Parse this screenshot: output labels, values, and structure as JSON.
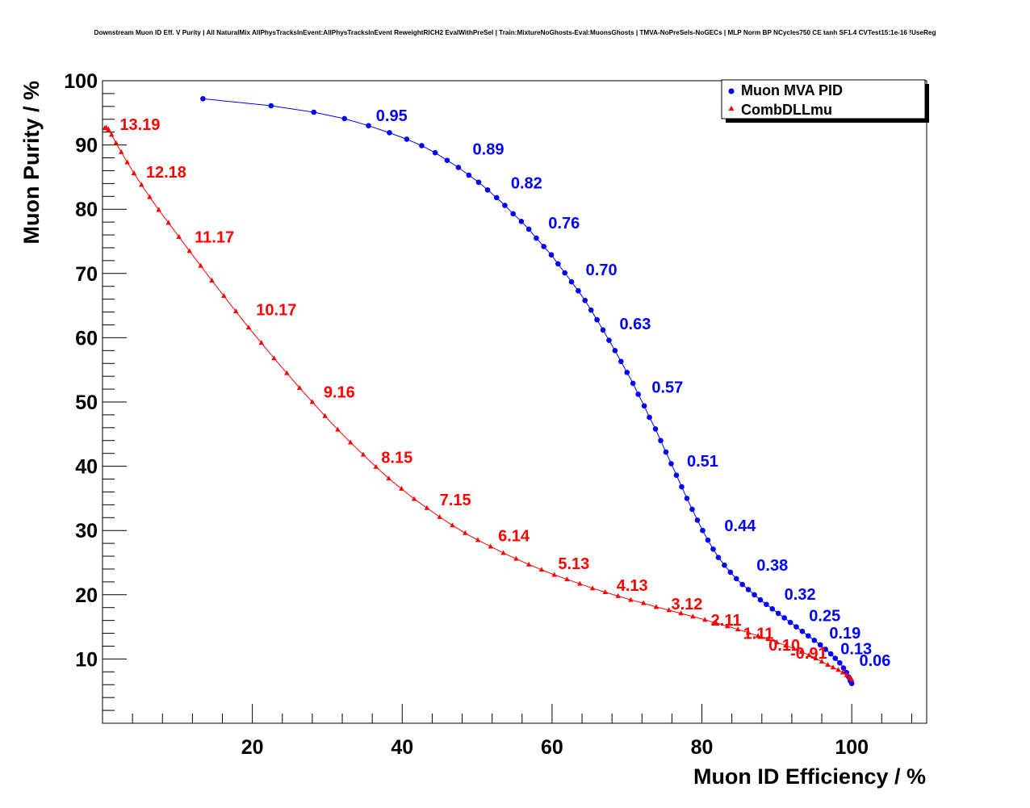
{
  "chart_data": {
    "type": "scatter",
    "title": "Downstream Muon ID Eff. V Purity | All NaturalMix AllPhysTracksInEvent:AllPhysTracksInEvent ReweightRICH2 EvalWithPreSel | Train:MixtureNoGhosts-Eval:MuonsGhosts | TMVA-NoPreSels-NoGECs | MLP Norm BP NCycles750 CE tanh SF1.4 CVTest15:1e-16 !UseReg",
    "xlabel": "Muon ID Efficiency / %",
    "ylabel": "Muon Purity / %",
    "xlim": [
      0,
      110
    ],
    "ylim": [
      0,
      100
    ],
    "xticks": [
      20,
      40,
      60,
      80,
      100
    ],
    "yticks": [
      10,
      20,
      30,
      40,
      50,
      60,
      70,
      80,
      90,
      100
    ],
    "grid": false,
    "legend_position": "top-right",
    "series": [
      {
        "name": "Muon MVA PID",
        "color": "#0000ff",
        "marker": "circle",
        "points": [
          [
            13.4,
            97.2
          ],
          [
            22.5,
            96.1
          ],
          [
            28.2,
            95.1
          ],
          [
            32.3,
            94.1
          ],
          [
            35.5,
            93.0
          ],
          [
            38.3,
            91.9
          ],
          [
            40.6,
            90.9
          ],
          [
            42.6,
            89.9
          ],
          [
            44.4,
            88.8
          ],
          [
            46.0,
            87.6
          ],
          [
            47.5,
            86.5
          ],
          [
            48.9,
            85.3
          ],
          [
            50.2,
            84.2
          ],
          [
            51.4,
            83.0
          ],
          [
            52.6,
            81.8
          ],
          [
            53.7,
            80.6
          ],
          [
            54.8,
            79.3
          ],
          [
            55.9,
            78.1
          ],
          [
            56.9,
            76.9
          ],
          [
            57.9,
            75.5
          ],
          [
            58.9,
            74.2
          ],
          [
            59.9,
            72.9
          ],
          [
            60.8,
            71.5
          ],
          [
            61.7,
            70.1
          ],
          [
            62.6,
            68.7
          ],
          [
            63.5,
            67.3
          ],
          [
            64.4,
            65.8
          ],
          [
            65.2,
            64.3
          ],
          [
            66.0,
            62.8
          ],
          [
            66.8,
            61.2
          ],
          [
            67.6,
            59.6
          ],
          [
            68.4,
            58.0
          ],
          [
            69.2,
            56.3
          ],
          [
            70.0,
            54.6
          ],
          [
            70.8,
            52.9
          ],
          [
            71.5,
            51.2
          ],
          [
            72.3,
            49.4
          ],
          [
            73.0,
            47.6
          ],
          [
            73.8,
            45.8
          ],
          [
            74.5,
            44.0
          ],
          [
            75.2,
            42.2
          ],
          [
            75.9,
            40.4
          ],
          [
            76.6,
            38.6
          ],
          [
            77.3,
            36.8
          ],
          [
            78.0,
            35.0
          ],
          [
            78.7,
            33.3
          ],
          [
            79.4,
            31.6
          ],
          [
            80.1,
            30.0
          ],
          [
            80.8,
            28.5
          ],
          [
            81.5,
            27.1
          ],
          [
            82.2,
            25.8
          ],
          [
            83.0,
            24.6
          ],
          [
            83.8,
            23.5
          ],
          [
            84.6,
            22.5
          ],
          [
            85.4,
            21.6
          ],
          [
            86.2,
            20.8
          ],
          [
            87.0,
            20.0
          ],
          [
            87.8,
            19.2
          ],
          [
            88.6,
            18.5
          ],
          [
            89.4,
            17.8
          ],
          [
            90.2,
            17.1
          ],
          [
            91.0,
            16.4
          ],
          [
            91.8,
            15.7
          ],
          [
            92.6,
            15.0
          ],
          [
            93.4,
            14.3
          ],
          [
            94.2,
            13.6
          ],
          [
            95.0,
            12.9
          ],
          [
            95.8,
            12.2
          ],
          [
            96.5,
            11.5
          ],
          [
            97.2,
            10.8
          ],
          [
            97.8,
            10.1
          ],
          [
            98.4,
            9.4
          ],
          [
            98.9,
            8.6
          ],
          [
            99.3,
            7.9
          ],
          [
            99.6,
            7.2
          ],
          [
            99.8,
            6.6
          ],
          [
            100.0,
            6.2
          ]
        ]
      },
      {
        "name": "CombDLLmu",
        "color": "#ff0000",
        "marker": "triangle",
        "points": [
          [
            0.3,
            92.6
          ],
          [
            0.5,
            92.7
          ],
          [
            0.8,
            92.4
          ],
          [
            1.2,
            91.6
          ],
          [
            1.8,
            90.3
          ],
          [
            2.5,
            88.9
          ],
          [
            3.3,
            87.3
          ],
          [
            4.2,
            85.6
          ],
          [
            5.2,
            83.8
          ],
          [
            6.3,
            81.9
          ],
          [
            7.5,
            79.9
          ],
          [
            8.8,
            77.9
          ],
          [
            10.2,
            75.7
          ],
          [
            11.6,
            73.5
          ],
          [
            13.1,
            71.2
          ],
          [
            14.6,
            68.9
          ],
          [
            16.2,
            66.5
          ],
          [
            17.8,
            64.1
          ],
          [
            19.5,
            61.6
          ],
          [
            21.2,
            59.2
          ],
          [
            22.9,
            56.8
          ],
          [
            24.6,
            54.5
          ],
          [
            26.3,
            52.2
          ],
          [
            28.0,
            50.0
          ],
          [
            29.7,
            47.8
          ],
          [
            31.4,
            45.7
          ],
          [
            33.1,
            43.7
          ],
          [
            34.8,
            41.8
          ],
          [
            36.5,
            39.9
          ],
          [
            38.2,
            38.1
          ],
          [
            39.9,
            36.5
          ],
          [
            41.6,
            34.9
          ],
          [
            43.3,
            33.5
          ],
          [
            45.0,
            32.1
          ],
          [
            46.7,
            30.8
          ],
          [
            48.4,
            29.6
          ],
          [
            50.1,
            28.5
          ],
          [
            51.8,
            27.5
          ],
          [
            53.5,
            26.5
          ],
          [
            55.2,
            25.6
          ],
          [
            56.9,
            24.7
          ],
          [
            58.6,
            23.9
          ],
          [
            60.3,
            23.1
          ],
          [
            62.0,
            22.4
          ],
          [
            63.7,
            21.7
          ],
          [
            65.4,
            21.0
          ],
          [
            67.1,
            20.4
          ],
          [
            68.8,
            19.8
          ],
          [
            70.5,
            19.2
          ],
          [
            72.2,
            18.7
          ],
          [
            73.9,
            18.1
          ],
          [
            75.6,
            17.6
          ],
          [
            77.2,
            17.1
          ],
          [
            78.8,
            16.6
          ],
          [
            80.4,
            16.1
          ],
          [
            81.9,
            15.6
          ],
          [
            83.4,
            15.1
          ],
          [
            84.8,
            14.6
          ],
          [
            86.2,
            14.1
          ],
          [
            87.5,
            13.6
          ],
          [
            88.8,
            13.1
          ],
          [
            90.0,
            12.6
          ],
          [
            91.2,
            12.1
          ],
          [
            92.3,
            11.6
          ],
          [
            93.3,
            11.1
          ],
          [
            94.3,
            10.6
          ],
          [
            95.2,
            10.1
          ],
          [
            96.0,
            9.6
          ],
          [
            96.8,
            9.1
          ],
          [
            97.5,
            8.7
          ],
          [
            98.2,
            8.3
          ],
          [
            98.8,
            7.9
          ],
          [
            99.3,
            7.5
          ],
          [
            99.7,
            7.1
          ],
          [
            100.0,
            6.8
          ]
        ]
      }
    ],
    "annotations": [
      {
        "series": "Muon MVA PID",
        "text": "0.95",
        "x": 36.5,
        "y": 94.6
      },
      {
        "series": "Muon MVA PID",
        "text": "0.89",
        "x": 49.4,
        "y": 89.4
      },
      {
        "series": "Muon MVA PID",
        "text": "0.82",
        "x": 54.5,
        "y": 84.1
      },
      {
        "series": "Muon MVA PID",
        "text": "0.76",
        "x": 59.5,
        "y": 77.9
      },
      {
        "series": "Muon MVA PID",
        "text": "0.70",
        "x": 64.5,
        "y": 70.6
      },
      {
        "series": "Muon MVA PID",
        "text": "0.63",
        "x": 69.0,
        "y": 62.2
      },
      {
        "series": "Muon MVA PID",
        "text": "0.57",
        "x": 73.3,
        "y": 52.3
      },
      {
        "series": "Muon MVA PID",
        "text": "0.51",
        "x": 78.0,
        "y": 40.8
      },
      {
        "series": "Muon MVA PID",
        "text": "0.44",
        "x": 83.0,
        "y": 30.8
      },
      {
        "series": "Muon MVA PID",
        "text": "0.38",
        "x": 87.3,
        "y": 24.6
      },
      {
        "series": "Muon MVA PID",
        "text": "0.32",
        "x": 91.0,
        "y": 20.1
      },
      {
        "series": "Muon MVA PID",
        "text": "0.25",
        "x": 94.3,
        "y": 16.8
      },
      {
        "series": "Muon MVA PID",
        "text": "0.19",
        "x": 97.0,
        "y": 14.1
      },
      {
        "series": "Muon MVA PID",
        "text": "0.13",
        "x": 98.5,
        "y": 11.6
      },
      {
        "series": "Muon MVA PID",
        "text": "0.06",
        "x": 101.0,
        "y": 9.8
      },
      {
        "series": "CombDLLmu",
        "text": "13.19",
        "x": 2.3,
        "y": 93.2
      },
      {
        "series": "CombDLLmu",
        "text": "12.18",
        "x": 5.8,
        "y": 85.8
      },
      {
        "series": "CombDLLmu",
        "text": "11.17",
        "x": 12.3,
        "y": 75.7
      },
      {
        "series": "CombDLLmu",
        "text": "10.17",
        "x": 20.5,
        "y": 64.4
      },
      {
        "series": "CombDLLmu",
        "text": "9.16",
        "x": 29.5,
        "y": 51.6
      },
      {
        "series": "CombDLLmu",
        "text": "8.15",
        "x": 37.2,
        "y": 41.4
      },
      {
        "series": "CombDLLmu",
        "text": "7.15",
        "x": 45.0,
        "y": 34.8
      },
      {
        "series": "CombDLLmu",
        "text": "6.14",
        "x": 52.8,
        "y": 29.2
      },
      {
        "series": "CombDLLmu",
        "text": "5.13",
        "x": 60.8,
        "y": 24.9
      },
      {
        "series": "CombDLLmu",
        "text": "4.13",
        "x": 68.6,
        "y": 21.5
      },
      {
        "series": "CombDLLmu",
        "text": "3.12",
        "x": 75.9,
        "y": 18.6
      },
      {
        "series": "CombDLLmu",
        "text": "2.11",
        "x": 81.2,
        "y": 16.1
      },
      {
        "series": "CombDLLmu",
        "text": "1.11",
        "x": 85.5,
        "y": 14.0
      },
      {
        "series": "CombDLLmu",
        "text": "0.10",
        "x": 88.9,
        "y": 12.2
      },
      {
        "series": "CombDLLmu",
        "text": "-0.91",
        "x": 91.8,
        "y": 10.9
      }
    ]
  }
}
